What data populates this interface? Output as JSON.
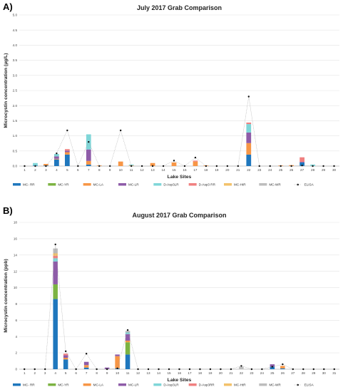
{
  "chart_data": [
    {
      "panel": "A)",
      "type": "bar",
      "stacked": true,
      "title": "July 2017 Grab Comparison",
      "xlabel": "Lake Sites",
      "ylabel": "Microcystin concentration (µg/L)",
      "ylim": [
        0,
        5
      ],
      "yticks": [
        "0.0",
        "0.5",
        "1.0",
        "1.5",
        "2.0",
        "2.5",
        "3.0",
        "3.5",
        "4.0",
        "4.5",
        "5.0"
      ],
      "categories": [
        "1",
        "2",
        "3",
        "4",
        "5",
        "6",
        "7",
        "8",
        "9",
        "10",
        "11",
        "12",
        "13",
        "14",
        "15",
        "16",
        "17",
        "18",
        "19",
        "20",
        "21",
        "22",
        "23",
        "24",
        "25",
        "26",
        "27",
        "28",
        "29",
        "30"
      ],
      "series": [
        {
          "name": "MC- RR",
          "color": "#1f77bd",
          "values": [
            0,
            0.02,
            0.02,
            0.22,
            0.38,
            0,
            0.05,
            0,
            0,
            0,
            0,
            0,
            0,
            0,
            0,
            0,
            0,
            0,
            0,
            0,
            0,
            0.38,
            0,
            0,
            0,
            0,
            0.12,
            0,
            0,
            0
          ]
        },
        {
          "name": "MC-YR",
          "color": "#7cb342",
          "values": [
            0,
            0,
            0,
            0,
            0,
            0,
            0,
            0,
            0,
            0,
            0,
            0,
            0,
            0,
            0,
            0,
            0,
            0,
            0,
            0,
            0,
            0,
            0,
            0,
            0,
            0,
            0,
            0,
            0,
            0
          ]
        },
        {
          "name": "MC-LA",
          "color": "#f79646",
          "values": [
            0,
            0,
            0.05,
            0.02,
            0.08,
            0,
            0.12,
            0.02,
            0,
            0.15,
            0.02,
            0,
            0.1,
            0,
            0.12,
            0,
            0.15,
            0.02,
            0,
            0,
            0,
            0.38,
            0,
            0,
            0.02,
            0.03,
            0,
            0,
            0,
            0
          ]
        },
        {
          "name": "MC-LR",
          "color": "#8e5ca8",
          "values": [
            0,
            0,
            0,
            0.08,
            0.05,
            0,
            0.38,
            0,
            0,
            0,
            0,
            0,
            0,
            0,
            0,
            0,
            0,
            0,
            0,
            0,
            0,
            0.35,
            0,
            0,
            0,
            0,
            0.02,
            0,
            0,
            0
          ]
        },
        {
          "name": "D-Asp3LR",
          "color": "#7fd6d8",
          "values": [
            0,
            0.08,
            0,
            0.08,
            0,
            0,
            0.5,
            0,
            0,
            0,
            0.03,
            0,
            0,
            0,
            0,
            0,
            0,
            0,
            0,
            0,
            0,
            0.28,
            0,
            0,
            0,
            0,
            0,
            0.05,
            0,
            0
          ]
        },
        {
          "name": "D-Asp3 RR",
          "color": "#f08080",
          "values": [
            0,
            0,
            0,
            0,
            0.05,
            0,
            0,
            0,
            0,
            0,
            0,
            0,
            0,
            0,
            0,
            0,
            0.03,
            0,
            0,
            0,
            0,
            0.05,
            0,
            0,
            0,
            0,
            0.15,
            0,
            0,
            0
          ]
        },
        {
          "name": "MC-HtR",
          "color": "#f3c26b",
          "values": [
            0,
            0,
            0,
            0,
            0,
            0,
            0,
            0,
            0,
            0,
            0,
            0,
            0,
            0,
            0,
            0,
            0,
            0,
            0,
            0,
            0,
            0,
            0,
            0,
            0,
            0,
            0,
            0,
            0,
            0
          ]
        },
        {
          "name": "MC-WR",
          "color": "#bdbdbd",
          "values": [
            0,
            0,
            0,
            0,
            0,
            0,
            0,
            0,
            0,
            0,
            0,
            0,
            0,
            0,
            0,
            0,
            0,
            0,
            0,
            0,
            0,
            0,
            0,
            0,
            0,
            0,
            0,
            0,
            0,
            0
          ]
        }
      ],
      "elisa": {
        "name": "ELISA",
        "values": [
          0,
          0,
          0,
          0.42,
          1.18,
          0,
          0.8,
          0,
          0,
          1.18,
          0,
          0,
          0,
          0,
          0.18,
          0,
          0.28,
          0,
          0,
          0,
          0,
          2.3,
          0,
          0,
          0,
          0,
          0.02,
          0,
          0,
          0
        ]
      }
    },
    {
      "panel": "B)",
      "type": "bar",
      "stacked": true,
      "title": "August 2017 Grab Comparison",
      "xlabel": "Lake Sites",
      "ylabel": "Microcystin concentration (ppb)",
      "ylim": [
        0,
        18
      ],
      "yticks": [
        "0",
        "2",
        "4",
        "6",
        "8",
        "10",
        "12",
        "14",
        "16",
        "18"
      ],
      "categories": [
        "1",
        "2",
        "3",
        "4",
        "5",
        "6",
        "7",
        "8",
        "9",
        "10",
        "11",
        "12",
        "13",
        "14",
        "15",
        "16",
        "17",
        "18",
        "19",
        "20",
        "21",
        "22",
        "23",
        "24",
        "25",
        "26",
        "27",
        "28",
        "29",
        "30",
        "31"
      ],
      "series": [
        {
          "name": "MC- RR",
          "color": "#1f77bd",
          "values": [
            0,
            0,
            0,
            8.6,
            1.2,
            0,
            0.2,
            0,
            0,
            0.1,
            1.8,
            0,
            0,
            0,
            0,
            0,
            0,
            0,
            0,
            0,
            0,
            0,
            0,
            0,
            0.3,
            0.1,
            0,
            0,
            0,
            0,
            0
          ]
        },
        {
          "name": "MC-YR",
          "color": "#7cb342",
          "values": [
            0,
            0,
            0,
            1.8,
            0,
            0,
            0,
            0,
            0,
            0,
            1.5,
            0,
            0,
            0,
            0,
            0,
            0,
            0,
            0,
            0,
            0,
            0,
            0,
            0,
            0,
            0,
            0,
            0,
            0,
            0,
            0
          ]
        },
        {
          "name": "MC-LA",
          "color": "#f79646",
          "values": [
            0,
            0,
            0,
            0,
            0.2,
            0,
            0.3,
            0,
            0,
            1.5,
            0.2,
            0,
            0,
            0,
            0,
            0,
            0,
            0,
            0,
            0,
            0,
            0,
            0,
            0,
            0,
            0.3,
            0,
            0,
            0,
            0,
            0
          ]
        },
        {
          "name": "MC-LR",
          "color": "#8e5ca8",
          "values": [
            0,
            0,
            0,
            2.8,
            0.3,
            0,
            0.4,
            0,
            0.2,
            0.2,
            0.8,
            0,
            0,
            0,
            0,
            0,
            0,
            0,
            0,
            0,
            0,
            0,
            0,
            0,
            0.3,
            0,
            0,
            0,
            0,
            0,
            0
          ]
        },
        {
          "name": "D-Asp3LR",
          "color": "#7fd6d8",
          "values": [
            0,
            0,
            0,
            0.4,
            0,
            0,
            0,
            0,
            0,
            0,
            0.2,
            0,
            0,
            0,
            0,
            0,
            0,
            0,
            0,
            0,
            0,
            0,
            0,
            0,
            0,
            0,
            0,
            0,
            0,
            0,
            0
          ]
        },
        {
          "name": "D-Asp3RR",
          "color": "#f08080",
          "values": [
            0,
            0,
            0,
            0.3,
            0.2,
            0,
            0,
            0,
            0,
            0,
            0,
            0,
            0,
            0,
            0,
            0,
            0,
            0,
            0,
            0,
            0,
            0,
            0,
            0,
            0,
            0,
            0,
            0,
            0,
            0,
            0
          ]
        },
        {
          "name": "MC-HtR",
          "color": "#f3c26b",
          "values": [
            0,
            0,
            0,
            0.3,
            0,
            0,
            0,
            0,
            0,
            0,
            0,
            0,
            0,
            0,
            0,
            0,
            0,
            0,
            0,
            0,
            0,
            0,
            0,
            0,
            0,
            0,
            0,
            0,
            0,
            0,
            0
          ]
        },
        {
          "name": "MC-WR",
          "color": "#bdbdbd",
          "values": [
            0,
            0,
            0,
            0.6,
            0,
            0,
            0,
            0,
            0,
            0,
            0.2,
            0,
            0,
            0,
            0,
            0,
            0,
            0,
            0,
            0,
            0,
            0.3,
            0,
            0,
            0,
            0,
            0,
            0,
            0,
            0,
            0
          ]
        }
      ],
      "elisa": {
        "name": "ELISA",
        "values": [
          0,
          0,
          0,
          15.3,
          2.2,
          0,
          1.9,
          0,
          0,
          0.1,
          4.8,
          0,
          0,
          0,
          0,
          0,
          0,
          0,
          0,
          0,
          0,
          0.4,
          0,
          0,
          0.3,
          0.6,
          0,
          0,
          0,
          0,
          0
        ]
      }
    }
  ]
}
